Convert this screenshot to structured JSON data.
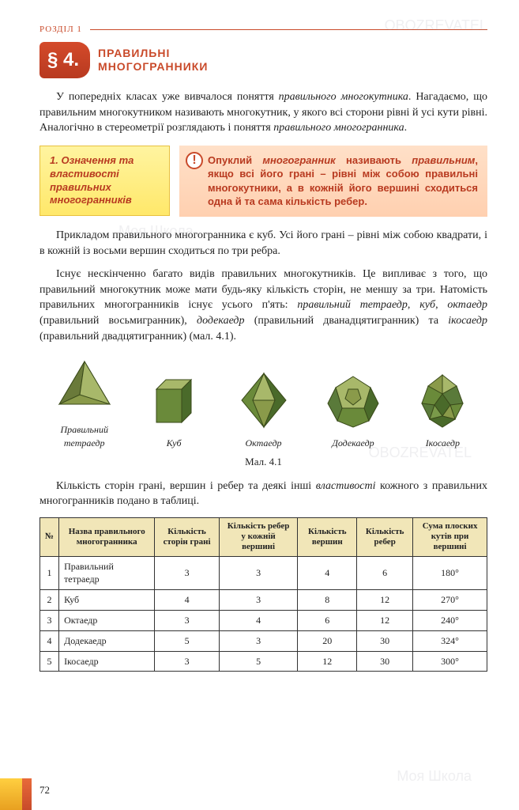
{
  "header": {
    "rozil": "РОЗДІЛ 1"
  },
  "section": {
    "badge": "§ 4.",
    "title_l1": "ПРАВИЛЬНІ",
    "title_l2": "МНОГОГРАННИКИ"
  },
  "intro_html": "У попередніх класах уже вивчалося поняття <span class=\"em\">правильного многокутника</span>. Нагадаємо, що правильним многокутником називають многокутник, у якого всі сторони рівні й усі кути рівні. Аналогічно в стереометрії розглядають і поняття <span class=\"em\">правильного многогранника</span>.",
  "def": {
    "left": "1. Означення та властивості правильних многогранників",
    "right_html": "Опуклий <span class=\"em\">многогранник</span> називають <span class=\"em\">правильним</span>, якщо всі його грані – рівні між собою правильні многокутники, а в кожній його вершині сходиться одна й та сама кількість ребер."
  },
  "para2": "Прикладом правильного многогранника є куб. Усі його грані – рівні між собою квадрати, і в кожній із восьми вершин сходиться по три ребра.",
  "para3_html": "Існує нескінченно багато видів правильних многокутників. Це випливає з того, що правильний многокутник може мати будь-яку кількість сторін, не меншу за три. Натомість правильних многогранників існує усього п'ять: <span class=\"em\">правильний тетраедр</span>, <span class=\"em\">куб</span>, <span class=\"em\">октаедр</span> (правильний восьмигранник), <span class=\"em\">додекаедр</span> (правильний дванадцятигранник) та <span class=\"em\">ікосаедр</span> (правильний двадцятигранник) (мал. 4.1).",
  "figures": {
    "caption": "Мал. 4.1",
    "items": [
      {
        "label": "Правильний тетраедр"
      },
      {
        "label": "Куб"
      },
      {
        "label": "Октаедр"
      },
      {
        "label": "Додекаедр"
      },
      {
        "label": "Ікосаедр"
      }
    ],
    "colors": {
      "face_light": "#9a7a3a",
      "face_mid": "#6a9a4a",
      "face_dark": "#4a6a2a",
      "edge": "#3a4a1a"
    }
  },
  "table_intro_html": "Кількість сторін грані, вершин і ребер та деякі інші <span class=\"em\">властивості</span> кожного з правильних многогранників подано в таблиці.",
  "table": {
    "header_bg": "#f1e6b8",
    "columns": [
      "№",
      "Назва правильного многогранника",
      "Кількість сторін грані",
      "Кількість ребер у кожній вершині",
      "Кількість вершин",
      "Кількість ребер",
      "Сума плоских кутів при вершині"
    ],
    "rows": [
      [
        "1",
        "Правильний тетраедр",
        "3",
        "3",
        "4",
        "6",
        "180°"
      ],
      [
        "2",
        "Куб",
        "4",
        "3",
        "8",
        "12",
        "270°"
      ],
      [
        "3",
        "Октаедр",
        "3",
        "4",
        "6",
        "12",
        "240°"
      ],
      [
        "4",
        "Додекаедр",
        "5",
        "3",
        "20",
        "30",
        "324°"
      ],
      [
        "5",
        "Ікосаедр",
        "3",
        "5",
        "12",
        "30",
        "300°"
      ]
    ]
  },
  "page_number": "72",
  "watermarks": [
    "Моя Школа",
    "OBOZREVATEL"
  ]
}
